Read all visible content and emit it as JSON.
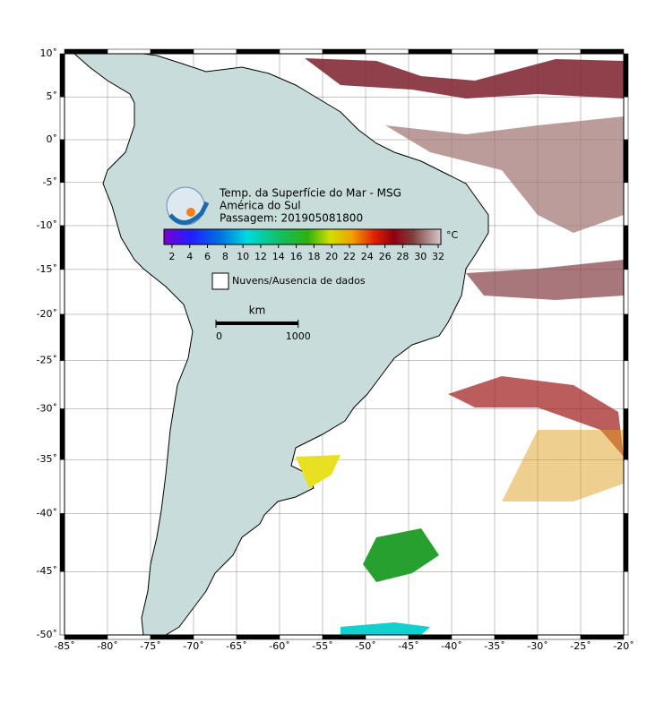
{
  "map": {
    "title_lines": [
      "Temp. da Superfície do Mar - MSG",
      "América do Sul",
      "Passagem: 201905081800"
    ],
    "lon_ticks": [
      {
        "value": -85,
        "label": "-85˚"
      },
      {
        "value": -80,
        "label": "-80˚"
      },
      {
        "value": -75,
        "label": "-75˚"
      },
      {
        "value": -70,
        "label": "-70˚"
      },
      {
        "value": -65,
        "label": "-65˚"
      },
      {
        "value": -60,
        "label": "-60˚"
      },
      {
        "value": -55,
        "label": "-55˚"
      },
      {
        "value": -50,
        "label": "-50˚"
      },
      {
        "value": -45,
        "label": "-45˚"
      },
      {
        "value": -40,
        "label": "-40˚"
      },
      {
        "value": -35,
        "label": "-35˚"
      },
      {
        "value": -30,
        "label": "-30˚"
      },
      {
        "value": -25,
        "label": "-25˚"
      },
      {
        "value": -20,
        "label": "-20˚"
      }
    ],
    "lat_ticks": [
      {
        "value": 10,
        "label": "10˚"
      },
      {
        "value": 5,
        "label": "5˚"
      },
      {
        "value": 0,
        "label": "0˚"
      },
      {
        "value": -5,
        "label": "-5˚"
      },
      {
        "value": -10,
        "label": "-10˚"
      },
      {
        "value": -15,
        "label": "-15˚"
      },
      {
        "value": -20,
        "label": "-20˚"
      },
      {
        "value": -25,
        "label": "-25˚"
      },
      {
        "value": -30,
        "label": "-30˚"
      },
      {
        "value": -35,
        "label": "-35˚"
      },
      {
        "value": -40,
        "label": "-40˚"
      },
      {
        "value": -45,
        "label": "-45˚"
      },
      {
        "value": -50,
        "label": "-50˚"
      }
    ],
    "colorbar": {
      "unit": "°C",
      "range": [
        1.1,
        32.3
      ],
      "ticks": [
        2,
        4,
        6,
        8,
        10,
        12,
        14,
        16,
        18,
        20,
        22,
        24,
        26,
        28,
        30,
        32
      ]
    },
    "legend": "Nuvens/Ausencia de dados",
    "scale_bar": {
      "unit": "km",
      "ticks": [
        0,
        1000
      ]
    }
  }
}
